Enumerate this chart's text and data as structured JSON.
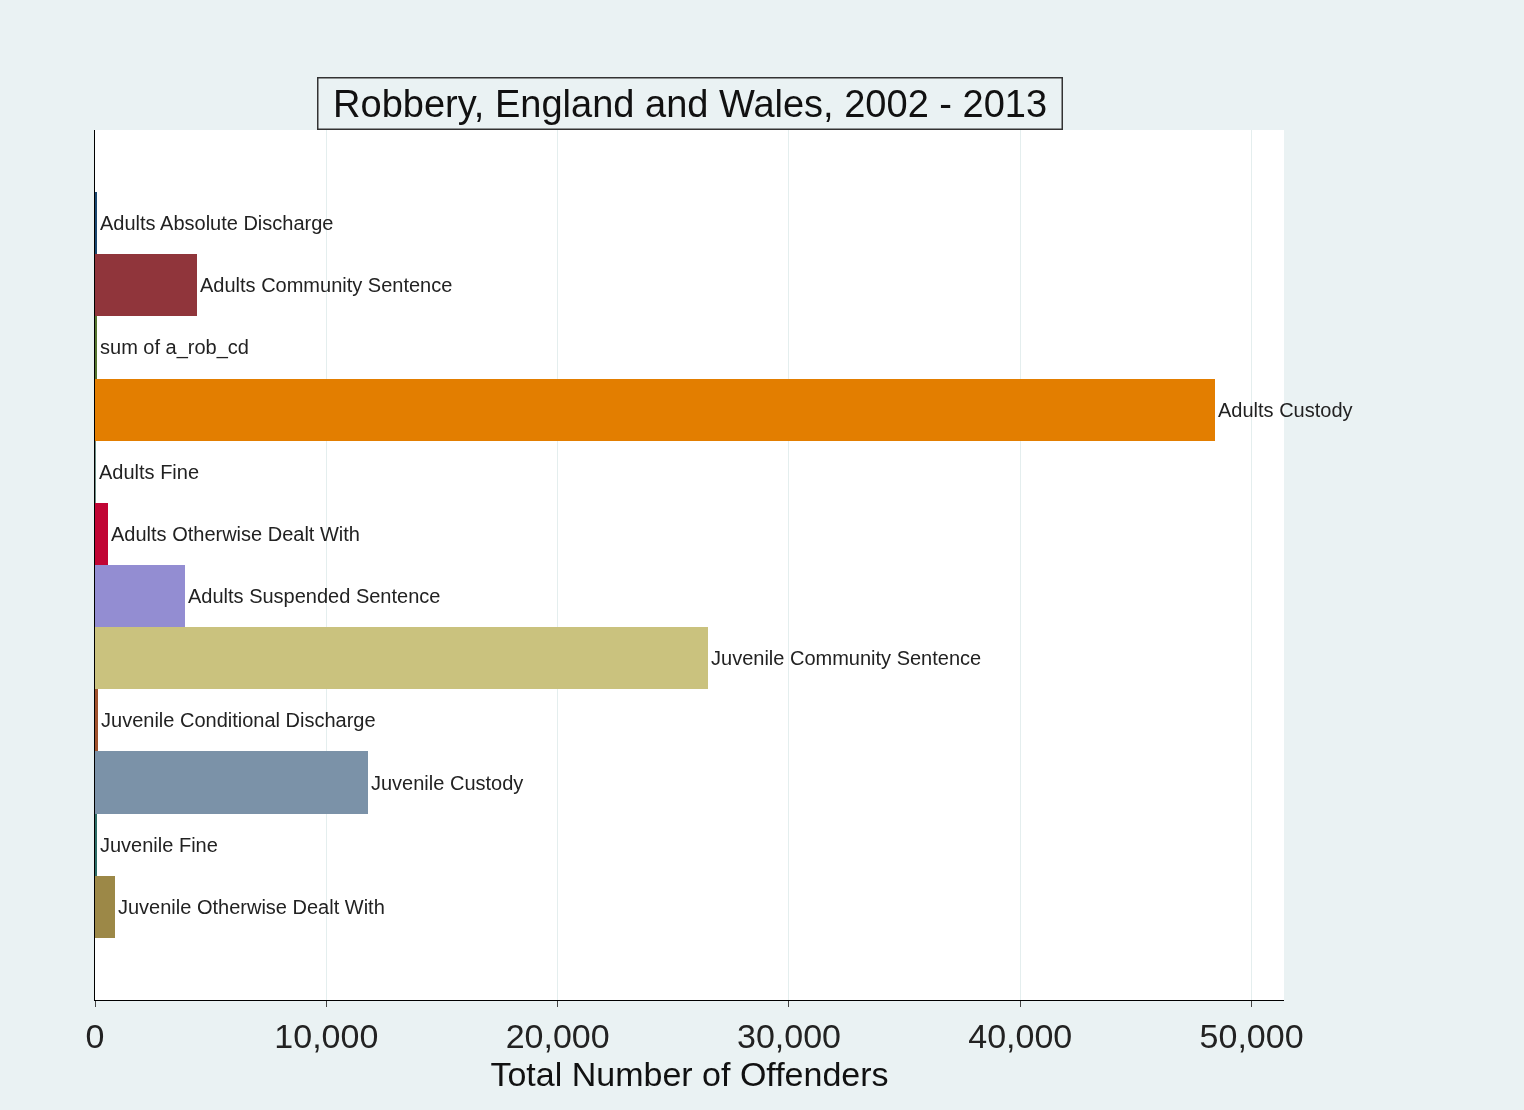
{
  "chart_data": {
    "type": "bar",
    "orientation": "horizontal",
    "title": "Robbery, England and Wales, 2002 - 2013",
    "xlabel": "Total Number of Offenders",
    "categories": [
      "Adults Absolute Discharge",
      "Adults Community Sentence",
      "sum of a_rob_cd",
      "Adults Custody",
      "Adults Fine",
      "Adults Otherwise Dealt With",
      "Adults Suspended Sentence",
      "Juvenile Community Sentence",
      "Juvenile Conditional Discharge",
      "Juvenile Custody",
      "Juvenile Fine",
      "Juvenile Otherwise Dealt With"
    ],
    "values": [
      50,
      4400,
      100,
      48400,
      30,
      570,
      3900,
      26500,
      150,
      11800,
      60,
      880
    ],
    "colors": [
      "#1a476f",
      "#90353b",
      "#55752f",
      "#e37e00",
      "#6e8e84",
      "#c10534",
      "#938dd2",
      "#cac27e",
      "#a0522d",
      "#7b92a8",
      "#2d6d66",
      "#9c8847"
    ],
    "xlim": [
      0,
      51400
    ],
    "xticks": [
      0,
      {
        "value": 10000,
        "label": "10,000"
      },
      {
        "value": 20000,
        "label": "20,000"
      },
      {
        "value": 30000,
        "label": "30,000"
      },
      {
        "value": 40000,
        "label": "40,000"
      },
      {
        "value": 50000,
        "label": "50,000"
      }
    ],
    "grid": "x",
    "tick_labels": "x"
  }
}
